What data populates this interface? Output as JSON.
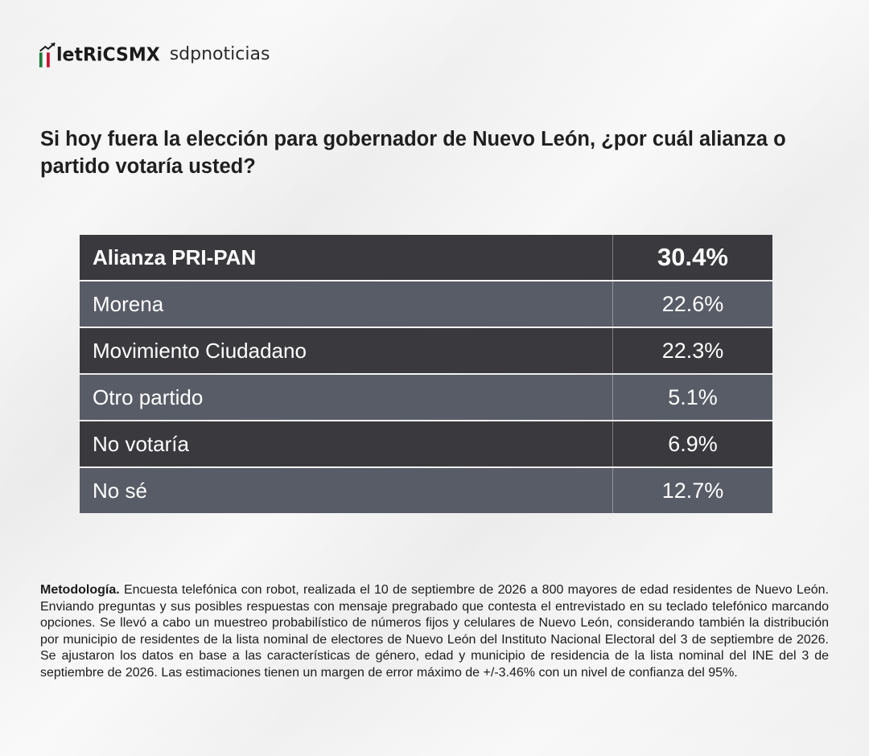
{
  "branding": {
    "logo_metrics": "MetricsMX",
    "logo_metrics_display": "letRiCSMX",
    "logo_sdp": "sdpnoticias"
  },
  "question": "Si hoy fuera la elección para gobernador de Nuevo León, ¿por cuál alianza o partido votaría usted?",
  "chart_data": {
    "type": "table",
    "title": "Si hoy fuera la elección para gobernador de Nuevo León, ¿por cuál alianza o partido votaría usted?",
    "categories": [
      "Alianza PRI-PAN",
      "Morena",
      "Movimiento Ciudadano",
      "Otro partido",
      "No votaría",
      "No sé"
    ],
    "values": [
      30.4,
      22.6,
      22.3,
      5.1,
      6.9,
      12.7
    ],
    "labels": [
      "30.4%",
      "22.6%",
      "22.3%",
      "5.1%",
      "6.9%",
      "12.7%"
    ]
  },
  "methodology": {
    "heading": "Metodología.",
    "body": " Encuesta telefónica con robot, realizada el 10 de septiembre de 2026 a 800 mayores de edad residentes de Nuevo León. Enviando preguntas y sus posibles respuestas con mensaje pregrabado que contesta el entrevistado en su teclado telefónico marcando opciones. Se llevó a cabo un muestreo probabilístico de números fijos y celulares de Nuevo León, considerando también la distribución por municipio de residentes de la lista nominal de electores de Nuevo León del Instituto Nacional Electoral del 3 de septiembre de 2026. Se ajustaron los datos en base a las características de género, edad y municipio de residencia de la lista nominal del INE del 3 de septiembre de 2026. Las estimaciones tienen un margen de error máximo de +/-3.46% con un nivel de confianza del 95%."
  },
  "colors": {
    "row_dark": "#3a3a3e",
    "row_light": "#585c66",
    "logo_green": "#1e7a3c",
    "logo_red": "#c8102e"
  }
}
